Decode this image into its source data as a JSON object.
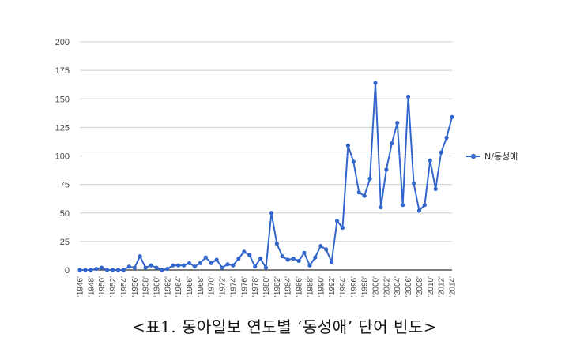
{
  "chart_data": {
    "type": "line",
    "title": "",
    "xlabel": "",
    "ylabel": "",
    "ylim": [
      0,
      200
    ],
    "yticks": [
      0,
      25,
      50,
      75,
      100,
      125,
      150,
      175,
      200
    ],
    "grid": true,
    "legend_position": "right",
    "x": [
      1946,
      1947,
      1948,
      1949,
      1950,
      1951,
      1952,
      1953,
      1954,
      1955,
      1956,
      1957,
      1958,
      1959,
      1960,
      1961,
      1962,
      1963,
      1964,
      1965,
      1966,
      1967,
      1968,
      1969,
      1970,
      1971,
      1972,
      1973,
      1974,
      1975,
      1976,
      1977,
      1978,
      1979,
      1980,
      1981,
      1982,
      1983,
      1984,
      1985,
      1986,
      1987,
      1988,
      1989,
      1990,
      1991,
      1992,
      1993,
      1994,
      1995,
      1996,
      1997,
      1998,
      1999,
      2000,
      2001,
      2002,
      2003,
      2004,
      2005,
      2006,
      2007,
      2008,
      2009,
      2010,
      2011,
      2012,
      2013,
      2014
    ],
    "x_tick_labels": [
      "'1946'",
      "'1948'",
      "'1950'",
      "'1952'",
      "'1954'",
      "'1956'",
      "'1958'",
      "'1960'",
      "'1962'",
      "'1964'",
      "'1966'",
      "'1968'",
      "'1970'",
      "'1972'",
      "'1974'",
      "'1976'",
      "'1978'",
      "'1980'",
      "'1982'",
      "'1984'",
      "'1986'",
      "'1988'",
      "'1990'",
      "'1992'",
      "'1994'",
      "'1996'",
      "'1998'",
      "'2000'",
      "'2002'",
      "'2004'",
      "'2006'",
      "'2008'",
      "'2010'",
      "'2012'",
      "'2014'"
    ],
    "series": [
      {
        "name": "N/동성애",
        "color": "#3366cc",
        "values": [
          0,
          0,
          0,
          1,
          2,
          0,
          0,
          0,
          0,
          3,
          2,
          12,
          2,
          4,
          2,
          0,
          1,
          4,
          4,
          4,
          6,
          3,
          6,
          11,
          6,
          9,
          2,
          5,
          4,
          10,
          16,
          13,
          3,
          10,
          2,
          50,
          23,
          12,
          9,
          10,
          8,
          15,
          4,
          11,
          21,
          18,
          7,
          43,
          37,
          109,
          95,
          68,
          65,
          80,
          164,
          55,
          88,
          111,
          129,
          57,
          152,
          76,
          52,
          57,
          96,
          71,
          103,
          116,
          134
        ]
      }
    ]
  },
  "caption": "<표1. 동아일보 연도별 ‘동성애’ 단어 빈도>"
}
